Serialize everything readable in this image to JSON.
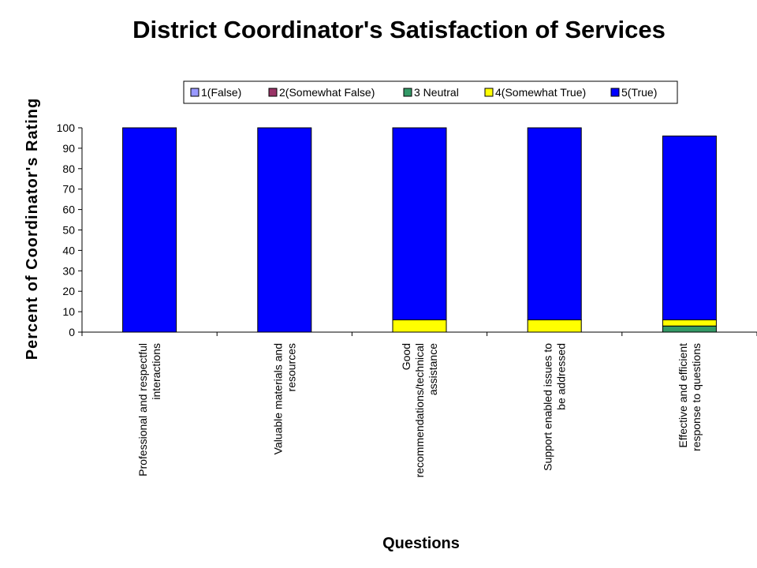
{
  "chart_data": {
    "type": "stacked-bar",
    "title": "District Coordinator's Satisfaction of Services",
    "xlabel": "Questions",
    "ylabel": "Percent of Coordinator's Rating",
    "ylim": [
      0,
      100
    ],
    "yticks": [
      0,
      10,
      20,
      30,
      40,
      50,
      60,
      70,
      80,
      90,
      100
    ],
    "grid": false,
    "legend_position": "top",
    "categories": [
      [
        "Professional and respectful",
        "interactions"
      ],
      [
        "Valuable materials and",
        "resources"
      ],
      [
        "Good",
        "recommendations/technical",
        "assistance"
      ],
      [
        "Support enabled issues to",
        "be addressed"
      ],
      [
        "Effective and efficient",
        "response to questions"
      ]
    ],
    "series": [
      {
        "name": "1(False)",
        "color": "#9999ff",
        "values": [
          0,
          0,
          0,
          0,
          0
        ]
      },
      {
        "name": "2(Somewhat False)",
        "color": "#993366",
        "values": [
          0,
          0,
          0,
          0,
          0
        ]
      },
      {
        "name": "3 Neutral",
        "color": "#339966",
        "values": [
          0,
          0,
          0,
          0,
          3
        ]
      },
      {
        "name": "4(Somewhat True)",
        "color": "#ffff00",
        "values": [
          0,
          0,
          6,
          6,
          3
        ]
      },
      {
        "name": "5(True)",
        "color": "#0000ff",
        "values": [
          100,
          100,
          94,
          94,
          90
        ]
      }
    ]
  }
}
